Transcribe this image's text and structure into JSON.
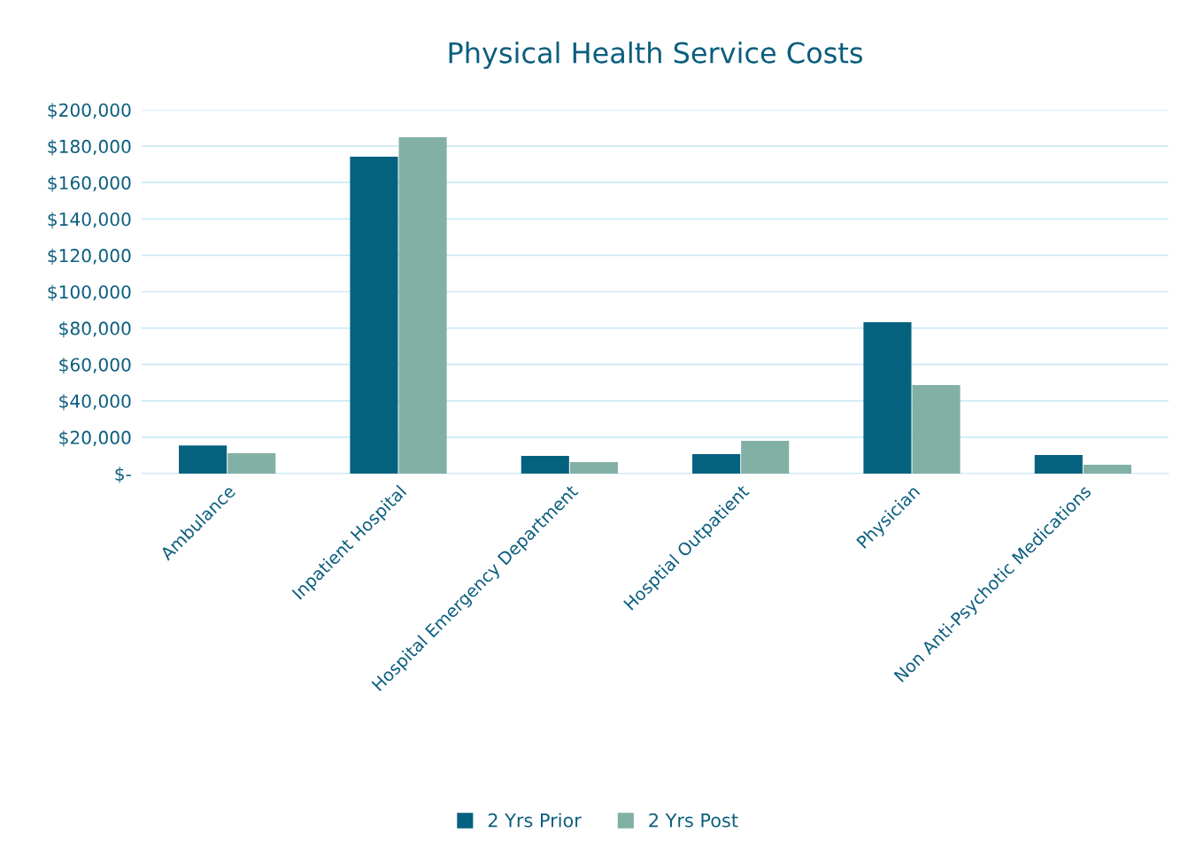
{
  "chart_data": {
    "type": "bar",
    "title": "Physical Health Service Costs",
    "categories": [
      "Ambulance",
      "Inpatient Hospital",
      "Hospital Emergency Department",
      "Hosptial Outpatient",
      "Physician",
      "Non Anti-Psychotic Medications"
    ],
    "series": [
      {
        "name": "2 Yrs Prior",
        "color": "#05627f",
        "values": [
          15500,
          174200,
          9700,
          10700,
          83200,
          10200
        ]
      },
      {
        "name": "2 Yrs Post",
        "color": "#82b0a5",
        "values": [
          11200,
          184900,
          6300,
          18000,
          48700,
          4900
        ]
      }
    ],
    "ylim": [
      0,
      200000
    ],
    "yticks": [
      {
        "value": 0,
        "label": "$-"
      },
      {
        "value": 20000,
        "label": "$20,000"
      },
      {
        "value": 40000,
        "label": "$40,000"
      },
      {
        "value": 60000,
        "label": "$60,000"
      },
      {
        "value": 80000,
        "label": "$80,000"
      },
      {
        "value": 100000,
        "label": "$100,000"
      },
      {
        "value": 120000,
        "label": "$120,000"
      },
      {
        "value": 140000,
        "label": "$140,000"
      },
      {
        "value": 160000,
        "label": "$160,000"
      },
      {
        "value": 180000,
        "label": "$180,000"
      },
      {
        "value": 200000,
        "label": "$200,000"
      }
    ],
    "grid": "y",
    "legend": "bottom"
  }
}
